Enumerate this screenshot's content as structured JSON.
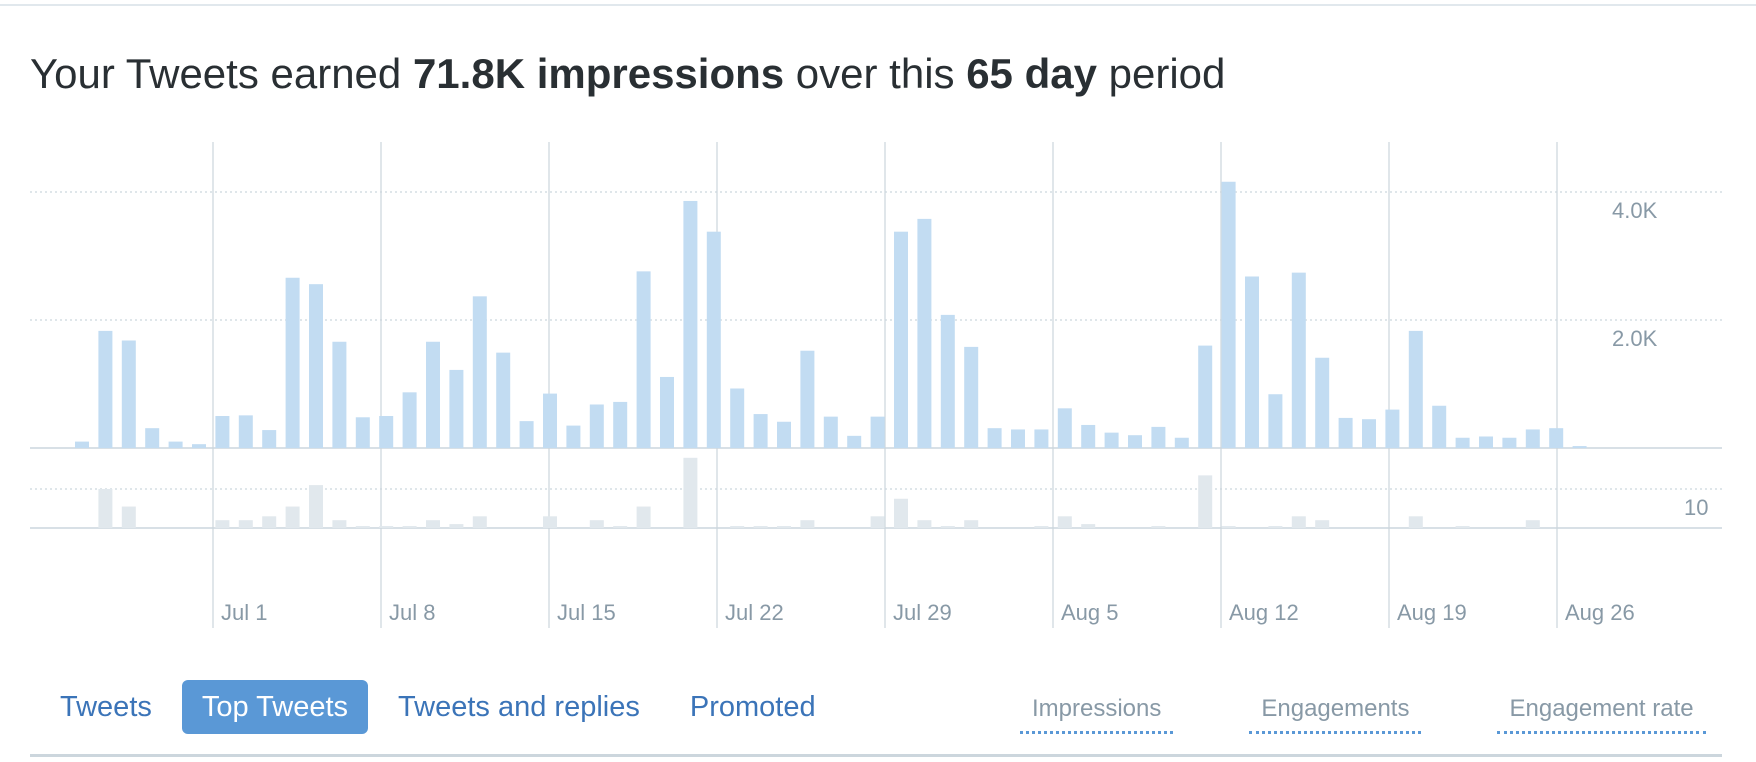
{
  "headline": {
    "prefix": "Your Tweets earned ",
    "impressions": "71.8K impressions",
    "middle": " over this ",
    "period": "65 day",
    "suffix": " period"
  },
  "tabs": [
    {
      "label": "Tweets",
      "active": false
    },
    {
      "label": "Top Tweets",
      "active": true
    },
    {
      "label": "Tweets and replies",
      "active": false
    },
    {
      "label": "Promoted",
      "active": false
    }
  ],
  "metrics": [
    {
      "label": "Impressions"
    },
    {
      "label": "Engagements"
    },
    {
      "label": "Engagement rate"
    }
  ],
  "colors": {
    "impressions_bar": "#c2dcf2",
    "engagements_bar": "#e1e8ed",
    "gridline": "#ccd6dd",
    "accent": "#5a98d6",
    "tab_text": "#3b74b8",
    "muted_text": "#8899a6"
  },
  "chart_data": {
    "type": "bar",
    "x_ticks": [
      "Jul 1",
      "Jul 8",
      "Jul 15",
      "Jul 22",
      "Jul 29",
      "Aug 5",
      "Aug 12",
      "Aug 19",
      "Aug 26"
    ],
    "impressions": {
      "y_ticks": [
        "2.0K",
        "4.0K"
      ],
      "ylim": [
        0,
        5000
      ],
      "values": [
        100,
        1830,
        1680,
        310,
        100,
        60,
        500,
        510,
        280,
        2660,
        2560,
        1660,
        480,
        500,
        870,
        1660,
        1220,
        2370,
        1490,
        420,
        850,
        350,
        680,
        720,
        2760,
        1110,
        3860,
        3380,
        930,
        530,
        410,
        1520,
        490,
        190,
        490,
        3380,
        3580,
        2080,
        1580,
        310,
        290,
        290,
        620,
        360,
        240,
        200,
        330,
        160,
        1600,
        4160,
        2680,
        840,
        2740,
        1410,
        470,
        450,
        600,
        1830,
        660,
        160,
        180,
        160,
        290,
        310,
        30
      ]
    },
    "engagements": {
      "y_ticks": [
        "10"
      ],
      "ylim": [
        0,
        20
      ],
      "values": [
        0,
        10,
        5.5,
        0,
        0,
        0,
        2,
        2,
        3,
        5.5,
        11,
        2,
        0.5,
        0.5,
        0.5,
        2,
        1,
        3,
        0,
        0,
        3,
        0,
        2,
        0.5,
        5.5,
        0,
        18,
        0,
        0.5,
        0.5,
        0.5,
        2,
        0,
        0,
        3,
        7.5,
        2,
        0.5,
        2,
        0,
        0,
        0.5,
        3,
        1,
        0,
        0,
        0.5,
        0,
        13.5,
        0.5,
        0,
        0.5,
        3,
        2,
        0,
        0,
        0,
        3,
        0,
        0.5,
        0,
        0,
        2,
        0,
        0
      ]
    }
  }
}
